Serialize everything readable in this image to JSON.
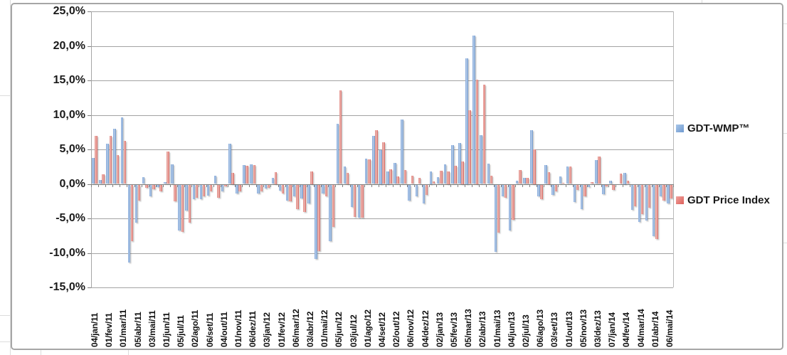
{
  "legend": {
    "items": [
      {
        "label": "GDT-WMP™",
        "color": "#7da3d8"
      },
      {
        "label": "GDT Price Index",
        "color": "#dd5f59"
      }
    ]
  },
  "colors": {
    "wmp_blue": "#7da3d8",
    "price_red": "#dd5f59",
    "gridline": "#a3a3a3",
    "axis": "#7f7f7f"
  },
  "chart_data": {
    "type": "bar",
    "title": "",
    "xlabel": "",
    "ylabel": "",
    "grid": true,
    "legend_position": "right",
    "y_axis": {
      "min": -15,
      "max": 25,
      "step": 5,
      "ticks": [
        "25,0%",
        "20,0%",
        "15,0%",
        "10,0%",
        "5,0%",
        "0,0%",
        "-5,0%",
        "-10,0%",
        "-15,0%"
      ]
    },
    "x_axis": {
      "note": "twice-monthly GDT auctions; axis labels shown for every second category",
      "labels": [
        "04/jan/11",
        "01/fev/11",
        "01/mar/11",
        "05/abr/11",
        "03/mai/11",
        "01/jun/11",
        "05/jul/11",
        "02/ago/11",
        "06/set/11",
        "04/out/11",
        "01/nov/11",
        "06/dez/11",
        "03/jan/12",
        "01/fev/12",
        "06/mar/12",
        "03/abr/12",
        "01/mai/12",
        "05/jun/12",
        "03/jul/12",
        "01/ago/12",
        "04/set/12",
        "02/out/12",
        "06/nov/12",
        "04/dez/12",
        "02/jan/13",
        "05/fev/13",
        "05/mar/13",
        "02/abr/13",
        "01/mai/13",
        "04/jun/13",
        "02/jul/13",
        "06/ago/13",
        "03/set/13",
        "01/out/13",
        "05/nov/13",
        "03/dez/13",
        "07/jan/14",
        "04/fev/14",
        "04/mar/14",
        "01/abr/14",
        "06/mai/14"
      ]
    },
    "categories": [
      "04/jan/11",
      "",
      "01/fev/11",
      "",
      "01/mar/11",
      "",
      "05/abr/11",
      "",
      "03/mai/11",
      "",
      "01/jun/11",
      "",
      "05/jul/11",
      "",
      "02/ago/11",
      "",
      "06/set/11",
      "",
      "04/out/11",
      "",
      "01/nov/11",
      "",
      "06/dez/11",
      "",
      "03/jan/12",
      "",
      "01/fev/12",
      "",
      "06/mar/12",
      "",
      "03/abr/12",
      "",
      "01/mai/12",
      "",
      "05/jun/12",
      "",
      "03/jul/12",
      "",
      "01/ago/12",
      "",
      "04/set/12",
      "",
      "02/out/12",
      "",
      "06/nov/12",
      "",
      "04/dez/12",
      "",
      "02/jan/13",
      "",
      "05/fev/13",
      "",
      "05/mar/13",
      "",
      "02/abr/13",
      "",
      "01/mai/13",
      "",
      "04/jun/13",
      "",
      "02/jul/13",
      "",
      "06/ago/13",
      "",
      "03/set/13",
      "",
      "01/out/13",
      "",
      "05/nov/13",
      "",
      "03/dez/13",
      "",
      "07/jan/14",
      "",
      "04/fev/14",
      "",
      "04/mar/14",
      "",
      "01/abr/14",
      "",
      "06/mai/14"
    ],
    "series": [
      {
        "name": "GDT-WMP™",
        "color": "#7da3d8",
        "values": [
          3.8,
          0.6,
          5.8,
          8.0,
          9.6,
          -11.3,
          -5.5,
          1.0,
          -1.7,
          -0.4,
          0.3,
          2.8,
          -6.6,
          -3.8,
          -2.1,
          -2.1,
          -1.6,
          1.2,
          -1.0,
          5.8,
          -1.3,
          2.7,
          2.8,
          -1.3,
          -0.6,
          0.9,
          -0.9,
          -2.3,
          -1.7,
          -2.0,
          -2.7,
          -10.8,
          -1.3,
          -8.2,
          8.7,
          2.5,
          -3.2,
          -4.8,
          3.7,
          7.0,
          4.9,
          1.8,
          3.0,
          9.3,
          -2.3,
          -1.7,
          -2.7,
          1.8,
          1.0,
          2.8,
          5.6,
          5.9,
          18.2,
          21.5,
          7.1,
          2.9,
          -9.7,
          -1.7,
          -6.6,
          0.5,
          0.9,
          7.8,
          -1.7,
          2.7,
          -1.5,
          1.1,
          2.5,
          -2.5,
          -3.6,
          -0.4,
          3.5,
          -1.4,
          0.5,
          0,
          1.6,
          -3.7,
          -5.4,
          -5.2,
          -7.5,
          -1.7,
          -2.7
        ]
      },
      {
        "name": "GDT Price Index",
        "color": "#dd5f59",
        "values": [
          7.0,
          1.4,
          7.0,
          4.2,
          6.2,
          -8.2,
          -2.3,
          -0.5,
          -0.7,
          -1.0,
          4.7,
          -2.4,
          -6.8,
          -5.5,
          -1.9,
          -1.7,
          -1.0,
          -1.9,
          -0.3,
          1.6,
          -1.0,
          2.6,
          2.7,
          -1.0,
          -0.5,
          1.7,
          -1.3,
          -2.4,
          -3.6,
          -4.0,
          1.8,
          -9.6,
          -1.7,
          -6.1,
          13.6,
          1.6,
          -4.7,
          -4.8,
          3.6,
          7.8,
          6.0,
          2.1,
          1.1,
          2.0,
          1.2,
          0.9,
          -1.5,
          0.4,
          1.9,
          1.8,
          2.6,
          3.3,
          10.7,
          15.1,
          14.4,
          1.2,
          -7.0,
          -1.9,
          -5.1,
          2.0,
          0.9,
          5.0,
          -2.1,
          1.7,
          -1.0,
          0.2,
          2.5,
          -0.8,
          -1.7,
          0.3,
          4.0,
          -0.3,
          -0.8,
          1.5,
          0.5,
          -3.1,
          -4.3,
          -3.3,
          -7.9,
          -2.3,
          -2.0
        ]
      }
    ]
  }
}
